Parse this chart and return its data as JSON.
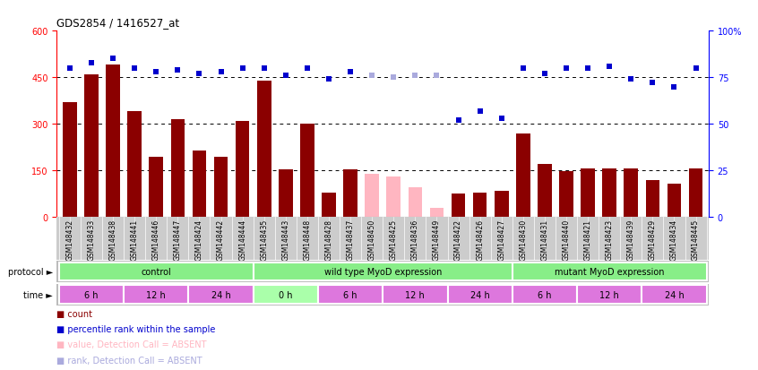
{
  "title": "GDS2854 / 1416527_at",
  "samples": [
    "GSM148432",
    "GSM148433",
    "GSM148438",
    "GSM148441",
    "GSM148446",
    "GSM148447",
    "GSM148424",
    "GSM148442",
    "GSM148444",
    "GSM148435",
    "GSM148443",
    "GSM148448",
    "GSM148428",
    "GSM148437",
    "GSM148450",
    "GSM148425",
    "GSM148436",
    "GSM148449",
    "GSM148422",
    "GSM148426",
    "GSM148427",
    "GSM148430",
    "GSM148431",
    "GSM148440",
    "GSM148421",
    "GSM148423",
    "GSM148439",
    "GSM148429",
    "GSM148434",
    "GSM148445"
  ],
  "bar_values": [
    370,
    460,
    490,
    340,
    195,
    315,
    215,
    195,
    310,
    440,
    155,
    300,
    80,
    155,
    140,
    130,
    95,
    30,
    75,
    80,
    85,
    270,
    170,
    148,
    158,
    158,
    158,
    120,
    108,
    158
  ],
  "bar_absent": [
    false,
    false,
    false,
    false,
    false,
    false,
    false,
    false,
    false,
    false,
    false,
    false,
    false,
    false,
    true,
    true,
    true,
    true,
    false,
    false,
    false,
    false,
    false,
    false,
    false,
    false,
    false,
    false,
    false,
    false
  ],
  "rank_values": [
    80,
    83,
    85,
    80,
    78,
    79,
    77,
    78,
    80,
    80,
    76,
    80,
    74,
    78,
    76,
    75,
    76,
    76,
    52,
    57,
    53,
    80,
    77,
    80,
    80,
    81,
    74,
    72,
    70,
    80
  ],
  "rank_absent": [
    false,
    false,
    false,
    false,
    false,
    false,
    false,
    false,
    false,
    false,
    false,
    false,
    false,
    false,
    true,
    true,
    true,
    true,
    false,
    false,
    false,
    false,
    false,
    false,
    false,
    false,
    false,
    false,
    false,
    false
  ],
  "protocols": [
    {
      "label": "control",
      "start": 0,
      "end": 9
    },
    {
      "label": "wild type MyoD expression",
      "start": 9,
      "end": 21
    },
    {
      "label": "mutant MyoD expression",
      "start": 21,
      "end": 30
    }
  ],
  "time_groups": [
    {
      "label": "6 h",
      "start": 0,
      "end": 3,
      "is_0h": false
    },
    {
      "label": "12 h",
      "start": 3,
      "end": 6,
      "is_0h": false
    },
    {
      "label": "24 h",
      "start": 6,
      "end": 9,
      "is_0h": false
    },
    {
      "label": "0 h",
      "start": 9,
      "end": 12,
      "is_0h": true
    },
    {
      "label": "6 h",
      "start": 12,
      "end": 15,
      "is_0h": false
    },
    {
      "label": "12 h",
      "start": 15,
      "end": 18,
      "is_0h": false
    },
    {
      "label": "24 h",
      "start": 18,
      "end": 21,
      "is_0h": false
    },
    {
      "label": "6 h",
      "start": 21,
      "end": 24,
      "is_0h": false
    },
    {
      "label": "12 h",
      "start": 24,
      "end": 27,
      "is_0h": false
    },
    {
      "label": "24 h",
      "start": 27,
      "end": 30,
      "is_0h": false
    }
  ],
  "yticks_left": [
    0,
    150,
    300,
    450,
    600
  ],
  "yticks_right": [
    0,
    25,
    50,
    75,
    100
  ],
  "bar_color_present": "#8B0000",
  "bar_color_absent": "#FFB6C1",
  "rank_color_present": "#0000CD",
  "rank_color_absent": "#AAAADD",
  "proto_color": "#88EE88",
  "time_color_normal": "#DD77DD",
  "time_color_0h": "#AAFFAA",
  "xlabel_bg": "#CCCCCC",
  "proto_bg": "#BBBBBB",
  "time_bg": "#BBBBBB"
}
